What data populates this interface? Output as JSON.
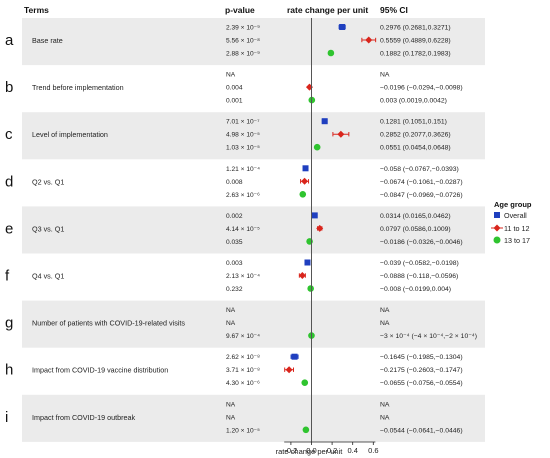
{
  "chart_data": {
    "type": "forest",
    "headers": {
      "terms": "Terms",
      "pvalue": "p-value",
      "effect": "rate change per unit",
      "ci": "95% CI"
    },
    "xlabel": "rate change per unit",
    "xlim": [
      -0.3,
      0.7
    ],
    "xticks": [
      -0.2,
      0,
      0.2,
      0.4,
      0.6
    ],
    "xtick_labels": [
      "-0.2",
      "0.0",
      "0.2",
      "0.4",
      "0.6"
    ],
    "reference_line": 0,
    "legend": {
      "title": "Age group",
      "placement": "right",
      "entries": [
        {
          "name": "Overall",
          "color": "#1f3fbf",
          "marker": "square"
        },
        {
          "name": "11 to 12",
          "color": "#d9251c",
          "marker": "diamond"
        },
        {
          "name": "13 to 17",
          "color": "#2fc42f",
          "marker": "circle"
        }
      ]
    },
    "groups": [
      {
        "letter": "a",
        "term": "Base rate",
        "shaded": true,
        "rows": [
          {
            "series": "Overall",
            "p": "2.39 × 10⁻⁹",
            "est": 0.2976,
            "lo": 0.2681,
            "hi": 0.3271,
            "ci": "0.2976 (0.2681,0.3271)"
          },
          {
            "series": "11 to 12",
            "p": "5.56 × 10⁻⁸",
            "est": 0.5559,
            "lo": 0.4889,
            "hi": 0.6228,
            "ci": "0.5559 (0.4889,0.6228)"
          },
          {
            "series": "13 to 17",
            "p": "2.88 × 10⁻⁹",
            "est": 0.1882,
            "lo": 0.1782,
            "hi": 0.1983,
            "ci": "0.1882 (0.1782,0.1983)"
          }
        ]
      },
      {
        "letter": "b",
        "term": "Trend before implementation",
        "shaded": false,
        "rows": [
          {
            "series": "Overall",
            "p": "NA",
            "est": null,
            "lo": null,
            "hi": null,
            "ci": "NA"
          },
          {
            "series": "11 to 12",
            "p": "0.004",
            "est": -0.0196,
            "lo": -0.0294,
            "hi": -0.0098,
            "ci": "−0.0196 (−0.0294,−0.0098)"
          },
          {
            "series": "13 to 17",
            "p": "0.001",
            "est": 0.003,
            "lo": 0.0019,
            "hi": 0.0042,
            "ci": "0.003 (0.0019,0.0042)"
          }
        ]
      },
      {
        "letter": "c",
        "term": "Level of implementation",
        "shaded": true,
        "rows": [
          {
            "series": "Overall",
            "p": "7.01 × 10⁻⁷",
            "est": 0.1281,
            "lo": 0.1051,
            "hi": 0.151,
            "ci": "0.1281 (0.1051,0.151)"
          },
          {
            "series": "11 to 12",
            "p": "4.98 × 10⁻⁵",
            "est": 0.2852,
            "lo": 0.2077,
            "hi": 0.3626,
            "ci": "0.2852 (0.2077,0.3626)"
          },
          {
            "series": "13 to 17",
            "p": "1.03 × 10⁻⁵",
            "est": 0.0551,
            "lo": 0.0454,
            "hi": 0.0648,
            "ci": "0.0551 (0.0454,0.0648)"
          }
        ]
      },
      {
        "letter": "d",
        "term": "Q2 vs. Q1",
        "shaded": false,
        "rows": [
          {
            "series": "Overall",
            "p": "1.21 × 10⁻⁴",
            "est": -0.058,
            "lo": -0.0767,
            "hi": -0.0393,
            "ci": "−0.058 (−0.0767,−0.0393)"
          },
          {
            "series": "11 to 12",
            "p": "0.008",
            "est": -0.0674,
            "lo": -0.1061,
            "hi": -0.0287,
            "ci": "−0.0674 (−0.1061,−0.0287)"
          },
          {
            "series": "13 to 17",
            "p": "2.63 × 10⁻⁶",
            "est": -0.0847,
            "lo": -0.0969,
            "hi": -0.0726,
            "ci": "−0.0847 (−0.0969,−0.0726)"
          }
        ]
      },
      {
        "letter": "e",
        "term": "Q3 vs. Q1",
        "shaded": true,
        "rows": [
          {
            "series": "Overall",
            "p": "0.002",
            "est": 0.0314,
            "lo": 0.0165,
            "hi": 0.0462,
            "ci": "0.0314 (0.0165,0.0462)"
          },
          {
            "series": "11 to 12",
            "p": "4.14 × 10⁻⁵",
            "est": 0.0797,
            "lo": 0.0586,
            "hi": 0.1009,
            "ci": "0.0797 (0.0586,0.1009)"
          },
          {
            "series": "13 to 17",
            "p": "0.035",
            "est": -0.0186,
            "lo": -0.0326,
            "hi": -0.0046,
            "ci": "−0.0186 (−0.0326,−0.0046)"
          }
        ]
      },
      {
        "letter": "f",
        "term": "Q4 vs. Q1",
        "shaded": false,
        "rows": [
          {
            "series": "Overall",
            "p": "0.003",
            "est": -0.039,
            "lo": -0.0582,
            "hi": -0.0198,
            "ci": "−0.039 (−0.0582,−0.0198)"
          },
          {
            "series": "11 to 12",
            "p": "2.13 × 10⁻⁴",
            "est": -0.0888,
            "lo": -0.118,
            "hi": -0.0596,
            "ci": "−0.0888 (−0.118,−0.0596)"
          },
          {
            "series": "13 to 17",
            "p": "0.232",
            "est": -0.008,
            "lo": -0.0199,
            "hi": 0.004,
            "ci": "−0.008 (−0.0199,0.004)"
          }
        ]
      },
      {
        "letter": "g",
        "term": "Number of patients with COVID-19-related visits",
        "shaded": true,
        "rows": [
          {
            "series": "Overall",
            "p": "NA",
            "est": null,
            "lo": null,
            "hi": null,
            "ci": "NA"
          },
          {
            "series": "11 to 12",
            "p": "NA",
            "est": null,
            "lo": null,
            "hi": null,
            "ci": "NA"
          },
          {
            "series": "13 to 17",
            "p": "9.67 × 10⁻⁴",
            "est": -0.0003,
            "lo": -0.0004,
            "hi": -0.0002,
            "ci": "−3 × 10⁻⁴ (−4 × 10⁻⁴,−2 × 10⁻⁴)"
          }
        ]
      },
      {
        "letter": "h",
        "term": "Impact from COVID-19 vaccine distribution",
        "shaded": false,
        "rows": [
          {
            "series": "Overall",
            "p": "2.62 × 10⁻⁸",
            "est": -0.1645,
            "lo": -0.1985,
            "hi": -0.1304,
            "ci": "−0.1645 (−0.1985,−0.1304)"
          },
          {
            "series": "11 to 12",
            "p": "3.71 × 10⁻⁸",
            "est": -0.2175,
            "lo": -0.2603,
            "hi": -0.1747,
            "ci": "−0.2175 (−0.2603,−0.1747)"
          },
          {
            "series": "13 to 17",
            "p": "4.30 × 10⁻⁶",
            "est": -0.0655,
            "lo": -0.0756,
            "hi": -0.0554,
            "ci": "−0.0655 (−0.0756,−0.0554)"
          }
        ]
      },
      {
        "letter": "i",
        "term": "Impact from COVID-19 outbreak",
        "shaded": true,
        "rows": [
          {
            "series": "Overall",
            "p": "NA",
            "est": null,
            "lo": null,
            "hi": null,
            "ci": "NA"
          },
          {
            "series": "11 to 12",
            "p": "NA",
            "est": null,
            "lo": null,
            "hi": null,
            "ci": "NA"
          },
          {
            "series": "13 to 17",
            "p": "1.20 × 10⁻⁵",
            "est": -0.0544,
            "lo": -0.0641,
            "hi": -0.0446,
            "ci": "−0.0544 (−0.0641,−0.0446)"
          }
        ]
      }
    ]
  }
}
